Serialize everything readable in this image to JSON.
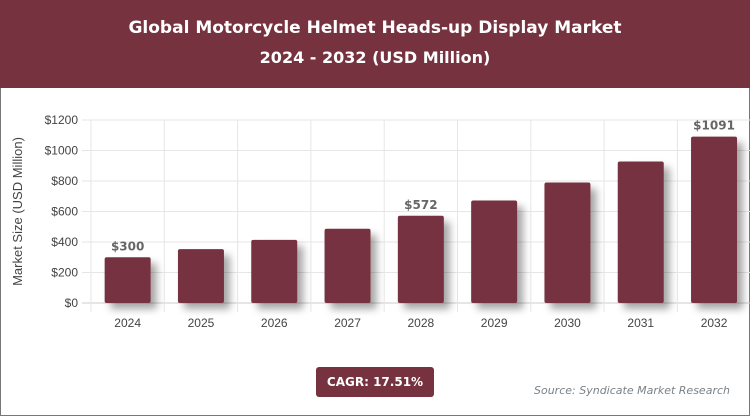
{
  "header": {
    "title": "Global Motorcycle Helmet Heads-up Display Market",
    "subtitle": "2024 - 2032 (USD Million)"
  },
  "chart_data": {
    "type": "bar",
    "title": "Global Motorcycle Helmet Heads-up Display Market",
    "subtitle": "2024 - 2032 (USD Million)",
    "xlabel": "",
    "ylabel": "Market Size (USD Million)",
    "categories": [
      "2024",
      "2025",
      "2026",
      "2027",
      "2028",
      "2029",
      "2030",
      "2031",
      "2032"
    ],
    "values": [
      300,
      353,
      414,
      487,
      572,
      672,
      790,
      928,
      1091
    ],
    "data_labels": {
      "0": "$300",
      "4": "$572",
      "8": "$1091"
    },
    "ylim": [
      0,
      1200
    ],
    "yticks": [
      "$0",
      "$200",
      "$400",
      "$600",
      "$800",
      "$1000",
      "$1200"
    ],
    "grid": true,
    "bar_color": "#76323f"
  },
  "footer": {
    "cagr": "CAGR: 17.51%",
    "source": "Source: Syndicate Market Research"
  }
}
